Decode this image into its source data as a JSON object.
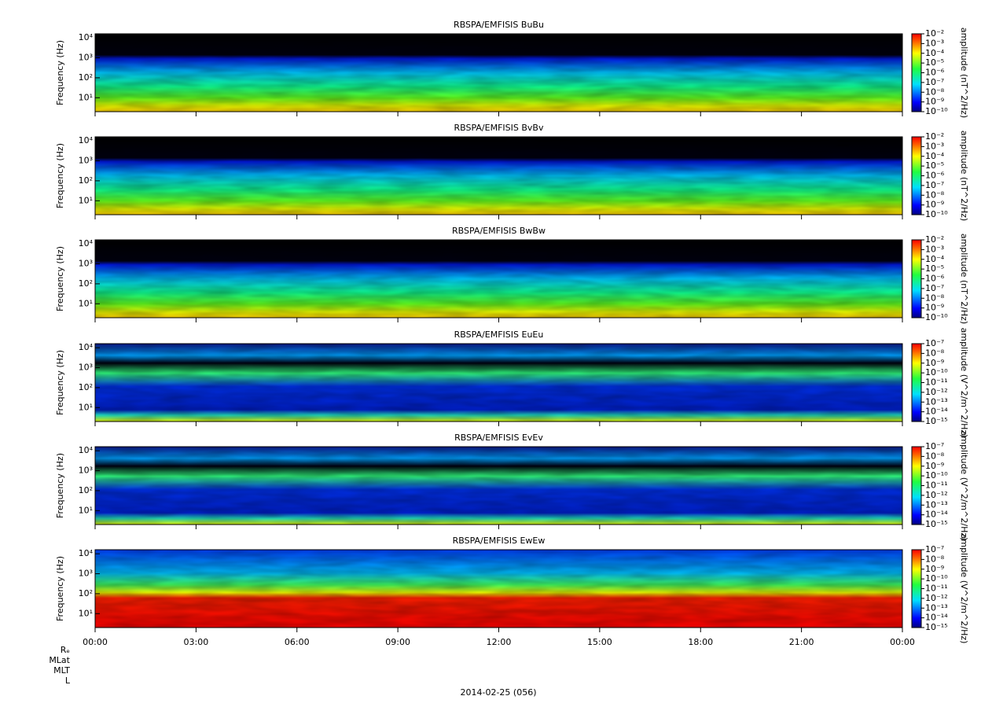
{
  "chart_data": [
    {
      "type": "spectrogram",
      "title": "RBSPA/EMFISIS  BuBu",
      "ylabel": "Frequency (Hz)",
      "log_y": true,
      "ylim": [
        2,
        16000
      ],
      "yticks": [
        {
          "value": 10,
          "label": "10¹"
        },
        {
          "value": 100,
          "label": "10²"
        },
        {
          "value": 1000,
          "label": "10³"
        },
        {
          "value": 10000,
          "label": "10⁴"
        }
      ],
      "colorbar_label": "amplitude (nT^2/Hz)",
      "zlim": [
        1e-10,
        0.01
      ],
      "zticks": [
        {
          "value": 0.01,
          "label": "10⁻²"
        },
        {
          "value": 0.001,
          "label": "10⁻³"
        },
        {
          "value": 0.0001,
          "label": "10⁻⁴"
        },
        {
          "value": 1e-05,
          "label": "10⁻⁵"
        },
        {
          "value": 1e-06,
          "label": "10⁻⁶"
        },
        {
          "value": 1e-07,
          "label": "10⁻⁷"
        },
        {
          "value": 1e-08,
          "label": "10⁻⁸"
        },
        {
          "value": 1e-09,
          "label": "10⁻⁹"
        },
        {
          "value": 1e-10,
          "label": "10⁻¹⁰"
        }
      ]
    },
    {
      "type": "spectrogram",
      "title": "RBSPA/EMFISIS  BvBv",
      "ylabel": "Frequency (Hz)",
      "log_y": true,
      "ylim": [
        2,
        16000
      ],
      "yticks": [
        {
          "value": 10,
          "label": "10¹"
        },
        {
          "value": 100,
          "label": "10²"
        },
        {
          "value": 1000,
          "label": "10³"
        },
        {
          "value": 10000,
          "label": "10⁴"
        }
      ],
      "colorbar_label": "amplitude (nT^2/Hz)",
      "zlim": [
        1e-10,
        0.01
      ],
      "zticks": [
        {
          "value": 0.01,
          "label": "10⁻²"
        },
        {
          "value": 0.001,
          "label": "10⁻³"
        },
        {
          "value": 0.0001,
          "label": "10⁻⁴"
        },
        {
          "value": 1e-05,
          "label": "10⁻⁵"
        },
        {
          "value": 1e-06,
          "label": "10⁻⁶"
        },
        {
          "value": 1e-07,
          "label": "10⁻⁷"
        },
        {
          "value": 1e-08,
          "label": "10⁻⁸"
        },
        {
          "value": 1e-09,
          "label": "10⁻⁹"
        },
        {
          "value": 1e-10,
          "label": "10⁻¹⁰"
        }
      ]
    },
    {
      "type": "spectrogram",
      "title": "RBSPA/EMFISIS  BwBw",
      "ylabel": "Frequency (Hz)",
      "log_y": true,
      "ylim": [
        2,
        16000
      ],
      "yticks": [
        {
          "value": 10,
          "label": "10¹"
        },
        {
          "value": 100,
          "label": "10²"
        },
        {
          "value": 1000,
          "label": "10³"
        },
        {
          "value": 10000,
          "label": "10⁴"
        }
      ],
      "colorbar_label": "amplitude (nT^2/Hz)",
      "zlim": [
        1e-10,
        0.01
      ],
      "zticks": [
        {
          "value": 0.01,
          "label": "10⁻²"
        },
        {
          "value": 0.001,
          "label": "10⁻³"
        },
        {
          "value": 0.0001,
          "label": "10⁻⁴"
        },
        {
          "value": 1e-05,
          "label": "10⁻⁵"
        },
        {
          "value": 1e-06,
          "label": "10⁻⁶"
        },
        {
          "value": 1e-07,
          "label": "10⁻⁷"
        },
        {
          "value": 1e-08,
          "label": "10⁻⁸"
        },
        {
          "value": 1e-09,
          "label": "10⁻⁹"
        },
        {
          "value": 1e-10,
          "label": "10⁻¹⁰"
        }
      ]
    },
    {
      "type": "spectrogram",
      "title": "RBSPA/EMFISIS  EuEu",
      "ylabel": "Frequency (Hz)",
      "log_y": true,
      "ylim": [
        2,
        16000
      ],
      "yticks": [
        {
          "value": 10,
          "label": "10¹"
        },
        {
          "value": 100,
          "label": "10²"
        },
        {
          "value": 1000,
          "label": "10³"
        },
        {
          "value": 10000,
          "label": "10⁴"
        }
      ],
      "colorbar_label": "amplitude (V^2/m^2/Hz)",
      "zlim": [
        1e-15,
        1e-07
      ],
      "zticks": [
        {
          "value": 1e-07,
          "label": "10⁻⁷"
        },
        {
          "value": 1e-08,
          "label": "10⁻⁸"
        },
        {
          "value": 1e-09,
          "label": "10⁻⁹"
        },
        {
          "value": 1e-10,
          "label": "10⁻¹⁰"
        },
        {
          "value": 1e-11,
          "label": "10⁻¹¹"
        },
        {
          "value": 1e-12,
          "label": "10⁻¹²"
        },
        {
          "value": 1e-13,
          "label": "10⁻¹³"
        },
        {
          "value": 1e-14,
          "label": "10⁻¹⁴"
        },
        {
          "value": 1e-15,
          "label": "10⁻¹⁵"
        }
      ]
    },
    {
      "type": "spectrogram",
      "title": "RBSPA/EMFISIS  EvEv",
      "ylabel": "Frequency (Hz)",
      "log_y": true,
      "ylim": [
        2,
        16000
      ],
      "yticks": [
        {
          "value": 10,
          "label": "10¹"
        },
        {
          "value": 100,
          "label": "10²"
        },
        {
          "value": 1000,
          "label": "10³"
        },
        {
          "value": 10000,
          "label": "10⁴"
        }
      ],
      "colorbar_label": "amplitude (V^2/m^2/Hz)",
      "zlim": [
        1e-15,
        1e-07
      ],
      "zticks": [
        {
          "value": 1e-07,
          "label": "10⁻⁷"
        },
        {
          "value": 1e-08,
          "label": "10⁻⁸"
        },
        {
          "value": 1e-09,
          "label": "10⁻⁹"
        },
        {
          "value": 1e-10,
          "label": "10⁻¹⁰"
        },
        {
          "value": 1e-11,
          "label": "10⁻¹¹"
        },
        {
          "value": 1e-12,
          "label": "10⁻¹²"
        },
        {
          "value": 1e-13,
          "label": "10⁻¹³"
        },
        {
          "value": 1e-14,
          "label": "10⁻¹⁴"
        },
        {
          "value": 1e-15,
          "label": "10⁻¹⁵"
        }
      ]
    },
    {
      "type": "spectrogram",
      "title": "RBSPA/EMFISIS  EwEw",
      "ylabel": "Frequency (Hz)",
      "log_y": true,
      "ylim": [
        2,
        16000
      ],
      "yticks": [
        {
          "value": 10,
          "label": "10¹"
        },
        {
          "value": 100,
          "label": "10²"
        },
        {
          "value": 1000,
          "label": "10³"
        },
        {
          "value": 10000,
          "label": "10⁴"
        }
      ],
      "colorbar_label": "amplitude (V^2/m^2/Hz)",
      "zlim": [
        1e-15,
        1e-07
      ],
      "zticks": [
        {
          "value": 1e-07,
          "label": "10⁻⁷"
        },
        {
          "value": 1e-08,
          "label": "10⁻⁸"
        },
        {
          "value": 1e-09,
          "label": "10⁻⁹"
        },
        {
          "value": 1e-10,
          "label": "10⁻¹⁰"
        },
        {
          "value": 1e-11,
          "label": "10⁻¹¹"
        },
        {
          "value": 1e-12,
          "label": "10⁻¹²"
        },
        {
          "value": 1e-13,
          "label": "10⁻¹³"
        },
        {
          "value": 1e-14,
          "label": "10⁻¹⁴"
        },
        {
          "value": 1e-15,
          "label": "10⁻¹⁵"
        }
      ]
    }
  ],
  "time_axis": {
    "xlim": [
      0,
      24
    ],
    "xticks": [
      {
        "value": 0,
        "label": "00:00"
      },
      {
        "value": 3,
        "label": "03:00"
      },
      {
        "value": 6,
        "label": "06:00"
      },
      {
        "value": 9,
        "label": "09:00"
      },
      {
        "value": 12,
        "label": "12:00"
      },
      {
        "value": 15,
        "label": "15:00"
      },
      {
        "value": 18,
        "label": "18:00"
      },
      {
        "value": 21,
        "label": "21:00"
      },
      {
        "value": 24,
        "label": "00:00"
      }
    ],
    "date_label": "2014-02-25 (056)",
    "ephemeris_labels": [
      "Rₑ",
      "MLat",
      "MLT",
      "L"
    ]
  }
}
